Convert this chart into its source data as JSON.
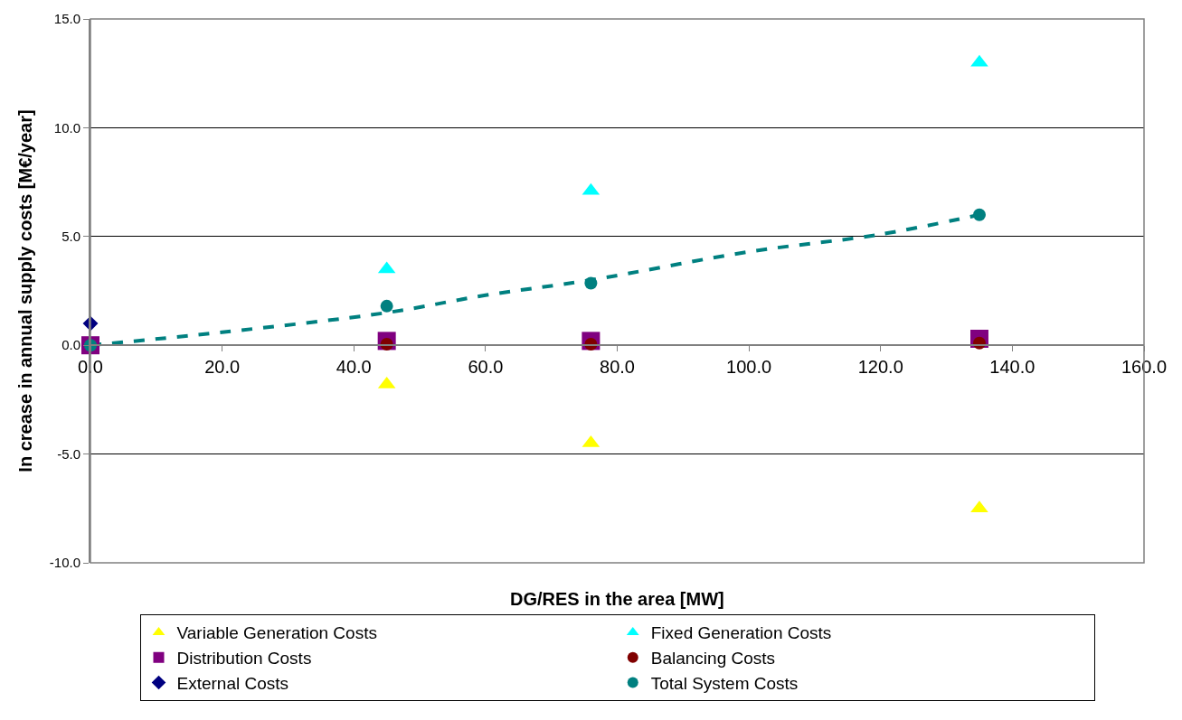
{
  "chart_data": {
    "type": "scatter",
    "xlabel": "DG/RES in the area [MW]",
    "ylabel": "In crease in annual supply costs [M€/year]",
    "xlim": [
      0,
      160
    ],
    "xticks": [
      {
        "value": 0,
        "label": "0.0"
      },
      {
        "value": 20,
        "label": "20.0"
      },
      {
        "value": 40,
        "label": "40.0"
      },
      {
        "value": 60,
        "label": "60.0"
      },
      {
        "value": 80,
        "label": "80.0"
      },
      {
        "value": 100,
        "label": "100.0"
      },
      {
        "value": 120,
        "label": "120.0"
      },
      {
        "value": 140,
        "label": "140.0"
      },
      {
        "value": 160,
        "label": "160.0"
      }
    ],
    "ylim": [
      -10,
      15
    ],
    "yticks": [
      {
        "value": -10,
        "label": "-10.0"
      },
      {
        "value": -5,
        "label": "-5.0"
      },
      {
        "value": 0,
        "label": "0.0"
      },
      {
        "value": 5,
        "label": "5.0"
      },
      {
        "value": 10,
        "label": "10.0"
      },
      {
        "value": 15,
        "label": "15.0"
      }
    ],
    "grid": "y",
    "legend": "bottom",
    "series": [
      {
        "name": "Variable Generation Costs",
        "color": "#ffff00",
        "marker": "triangle",
        "x": [
          45,
          76,
          135
        ],
        "values": [
          -1.8,
          -4.5,
          -7.5
        ]
      },
      {
        "name": "Fixed Generation Costs",
        "color": "#00ffff",
        "marker": "triangle",
        "x": [
          45,
          76,
          135
        ],
        "values": [
          3.5,
          7.1,
          13.0
        ]
      },
      {
        "name": "Distribution Costs",
        "color": "#800080",
        "marker": "square",
        "x": [
          0,
          45,
          76,
          135
        ],
        "values": [
          0,
          0.2,
          0.2,
          0.3
        ]
      },
      {
        "name": "Balancing Costs",
        "color": "#800000",
        "marker": "circle",
        "x": [
          45,
          76,
          135
        ],
        "values": [
          0.05,
          0.05,
          0.1
        ]
      },
      {
        "name": "External Costs",
        "color": "#000080",
        "marker": "diamond",
        "x": [
          0
        ],
        "values": [
          1.0
        ]
      },
      {
        "name": "Total System Costs",
        "color": "#008080",
        "marker": "circle",
        "x": [
          0,
          45,
          76,
          135
        ],
        "values": [
          0,
          1.8,
          2.85,
          6.0
        ]
      },
      {
        "type": "line",
        "color": "#008080",
        "line_style": "dashed",
        "marker": "none",
        "x": [
          0,
          20,
          45,
          60,
          76,
          100,
          120,
          135
        ],
        "values": [
          0,
          0.6,
          1.5,
          2.3,
          3.0,
          4.3,
          5.1,
          6.0
        ]
      }
    ]
  }
}
